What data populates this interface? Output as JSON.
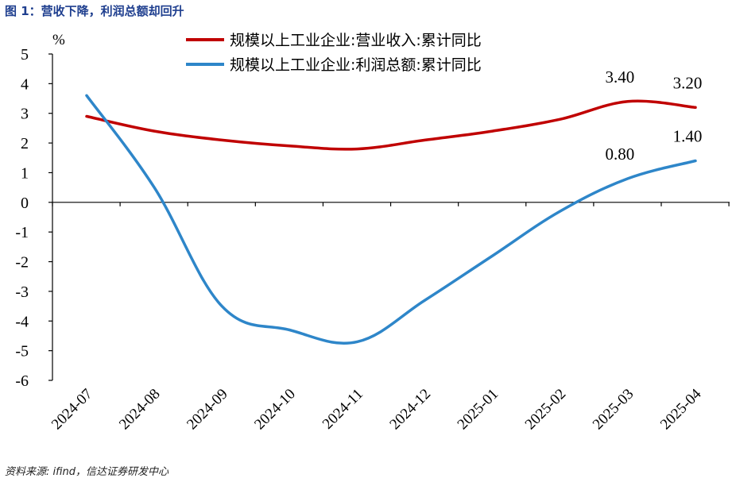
{
  "figure": {
    "title": "图 1：营收下降，利润总额却回升",
    "source": "资料来源: ifind，信达证券研发中心"
  },
  "chart_data": {
    "type": "line",
    "unit_label": "%",
    "categories": [
      "2024-07",
      "2024-08",
      "2024-09",
      "2024-10",
      "2024-11",
      "2024-12",
      "2025-01",
      "2025-02",
      "2025-03",
      "2025-04"
    ],
    "ylim": [
      -6,
      5
    ],
    "yticks": [
      5,
      4,
      3,
      2,
      1,
      0,
      -1,
      -2,
      -3,
      -4,
      -5,
      -6
    ],
    "grid": false,
    "legend_position": "top",
    "series": [
      {
        "name": "规模以上工业企业:营业收入:累计同比",
        "color": "#c00000",
        "values": [
          2.9,
          2.4,
          2.1,
          1.9,
          1.8,
          2.1,
          2.4,
          2.8,
          3.4,
          3.2
        ],
        "data_labels": [
          null,
          null,
          null,
          null,
          null,
          null,
          null,
          null,
          "3.40",
          "3.20"
        ]
      },
      {
        "name": "规模以上工业企业:利润总额:累计同比",
        "color": "#2e86c9",
        "values": [
          3.6,
          0.5,
          -3.5,
          -4.3,
          -4.7,
          -3.3,
          -1.8,
          -0.3,
          0.8,
          1.4
        ],
        "data_labels": [
          null,
          null,
          null,
          null,
          null,
          null,
          null,
          null,
          "0.80",
          "1.40"
        ]
      }
    ]
  }
}
